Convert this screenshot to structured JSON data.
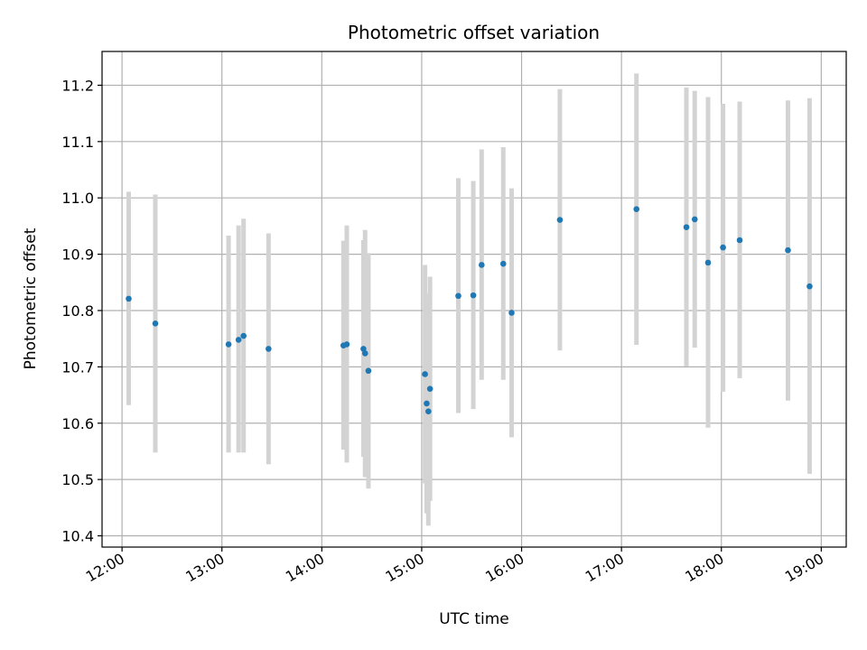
{
  "chart_data": {
    "type": "scatter",
    "title": "Photometric offset variation",
    "xlabel": "UTC time",
    "ylabel": "Photometric offset",
    "x_ticks": [
      "12:00",
      "13:00",
      "14:00",
      "15:00",
      "16:00",
      "17:00",
      "18:00",
      "19:00"
    ],
    "y_ticks": [
      "10.4",
      "10.5",
      "10.6",
      "10.7",
      "10.8",
      "10.9",
      "11.0",
      "11.1",
      "11.2"
    ],
    "xlim": [
      "11:48",
      "19:15"
    ],
    "ylim": [
      10.38,
      11.26
    ],
    "grid": true,
    "legend": "none",
    "colors": {
      "point": "#1f77b4",
      "errorbar": "#d3d3d3",
      "grid": "#b0b0b0"
    },
    "points": [
      {
        "x": "12:04",
        "y": 10.821,
        "ylo": 10.632,
        "yhi": 11.011
      },
      {
        "x": "12:20",
        "y": 10.777,
        "ylo": 10.548,
        "yhi": 11.006
      },
      {
        "x": "13:04",
        "y": 10.74,
        "ylo": 10.548,
        "yhi": 10.933
      },
      {
        "x": "13:10",
        "y": 10.748,
        "ylo": 10.548,
        "yhi": 10.951
      },
      {
        "x": "13:13",
        "y": 10.755,
        "ylo": 10.548,
        "yhi": 10.963
      },
      {
        "x": "13:28",
        "y": 10.732,
        "ylo": 10.527,
        "yhi": 10.937
      },
      {
        "x": "14:13",
        "y": 10.738,
        "ylo": 10.553,
        "yhi": 10.924
      },
      {
        "x": "14:15",
        "y": 10.74,
        "ylo": 10.53,
        "yhi": 10.951
      },
      {
        "x": "14:25",
        "y": 10.732,
        "ylo": 10.54,
        "yhi": 10.925
      },
      {
        "x": "14:26",
        "y": 10.724,
        "ylo": 10.504,
        "yhi": 10.943
      },
      {
        "x": "14:28",
        "y": 10.693,
        "ylo": 10.484,
        "yhi": 10.902
      },
      {
        "x": "15:02",
        "y": 10.687,
        "ylo": 10.493,
        "yhi": 10.881
      },
      {
        "x": "15:03",
        "y": 10.635,
        "ylo": 10.44,
        "yhi": 10.83
      },
      {
        "x": "15:04",
        "y": 10.621,
        "ylo": 10.418,
        "yhi": 10.823
      },
      {
        "x": "15:05",
        "y": 10.661,
        "ylo": 10.462,
        "yhi": 10.86
      },
      {
        "x": "15:22",
        "y": 10.826,
        "ylo": 10.618,
        "yhi": 11.035
      },
      {
        "x": "15:31",
        "y": 10.827,
        "ylo": 10.625,
        "yhi": 11.03
      },
      {
        "x": "15:36",
        "y": 10.881,
        "ylo": 10.677,
        "yhi": 11.086
      },
      {
        "x": "15:49",
        "y": 10.883,
        "ylo": 10.677,
        "yhi": 11.09
      },
      {
        "x": "15:54",
        "y": 10.796,
        "ylo": 10.575,
        "yhi": 11.017
      },
      {
        "x": "16:23",
        "y": 10.961,
        "ylo": 10.729,
        "yhi": 11.193
      },
      {
        "x": "17:09",
        "y": 10.98,
        "ylo": 10.739,
        "yhi": 11.221
      },
      {
        "x": "17:39",
        "y": 10.948,
        "ylo": 10.701,
        "yhi": 11.196
      },
      {
        "x": "17:44",
        "y": 10.962,
        "ylo": 10.734,
        "yhi": 11.19
      },
      {
        "x": "17:52",
        "y": 10.885,
        "ylo": 10.592,
        "yhi": 11.179
      },
      {
        "x": "18:01",
        "y": 10.912,
        "ylo": 10.656,
        "yhi": 11.167
      },
      {
        "x": "18:11",
        "y": 10.925,
        "ylo": 10.68,
        "yhi": 11.171
      },
      {
        "x": "18:40",
        "y": 10.907,
        "ylo": 10.64,
        "yhi": 11.173
      },
      {
        "x": "18:53",
        "y": 10.843,
        "ylo": 10.51,
        "yhi": 11.177
      }
    ]
  }
}
